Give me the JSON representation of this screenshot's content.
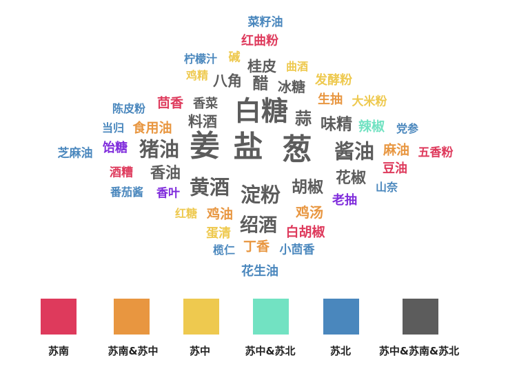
{
  "chart_data": {
    "type": "wordcloud",
    "legend": [
      {
        "key": "sn",
        "label": "苏南",
        "color": "#de3a5c"
      },
      {
        "key": "snz",
        "label": "苏南&苏中",
        "color": "#e89640"
      },
      {
        "key": "sz",
        "label": "苏中",
        "color": "#eec94f"
      },
      {
        "key": "szb",
        "label": "苏中&苏北",
        "color": "#72e2c2"
      },
      {
        "key": "sb",
        "label": "苏北",
        "color": "#4a87bd"
      },
      {
        "key": "all",
        "label": "苏中&苏南&苏北",
        "color": "#5c5c5c"
      }
    ],
    "words": [
      {
        "text": "菜籽油",
        "group": "sb"
      },
      {
        "text": "红曲粉",
        "group": "sn"
      },
      {
        "text": "柠檬汁",
        "group": "sb"
      },
      {
        "text": "碱",
        "group": "sz"
      },
      {
        "text": "桂皮",
        "group": "all"
      },
      {
        "text": "曲酒",
        "group": "sz"
      },
      {
        "text": "鸡精",
        "group": "sz"
      },
      {
        "text": "八角",
        "group": "all"
      },
      {
        "text": "醋",
        "group": "all"
      },
      {
        "text": "冰糖",
        "group": "all"
      },
      {
        "text": "发酵粉",
        "group": "sz"
      },
      {
        "text": "陈皮粉",
        "group": "sb"
      },
      {
        "text": "茴香",
        "group": "sn"
      },
      {
        "text": "香菜",
        "group": "all"
      },
      {
        "text": "白糖",
        "group": "all"
      },
      {
        "text": "生抽",
        "group": "snz"
      },
      {
        "text": "大米粉",
        "group": "sz"
      },
      {
        "text": "当归",
        "group": "sb"
      },
      {
        "text": "食用油",
        "group": "snz"
      },
      {
        "text": "料酒",
        "group": "all"
      },
      {
        "text": "蒜",
        "group": "all"
      },
      {
        "text": "味精",
        "group": "all"
      },
      {
        "text": "辣椒",
        "group": "szb"
      },
      {
        "text": "党参",
        "group": "sb"
      },
      {
        "text": "芝麻油",
        "group": "sb"
      },
      {
        "text": "饴糖",
        "group": "purple"
      },
      {
        "text": "猪油",
        "group": "all"
      },
      {
        "text": "姜",
        "group": "all"
      },
      {
        "text": "盐",
        "group": "all"
      },
      {
        "text": "葱",
        "group": "all"
      },
      {
        "text": "酱油",
        "group": "all"
      },
      {
        "text": "麻油",
        "group": "snz"
      },
      {
        "text": "五香粉",
        "group": "sn"
      },
      {
        "text": "酒糟",
        "group": "sn"
      },
      {
        "text": "香油",
        "group": "all"
      },
      {
        "text": "豆油",
        "group": "sn"
      },
      {
        "text": "花椒",
        "group": "all"
      },
      {
        "text": "番茄酱",
        "group": "sb"
      },
      {
        "text": "香叶",
        "group": "purple"
      },
      {
        "text": "黄酒",
        "group": "all"
      },
      {
        "text": "淀粉",
        "group": "all"
      },
      {
        "text": "胡椒",
        "group": "all"
      },
      {
        "text": "山奈",
        "group": "sb"
      },
      {
        "text": "老抽",
        "group": "purple"
      },
      {
        "text": "红糖",
        "group": "sz"
      },
      {
        "text": "鸡油",
        "group": "snz"
      },
      {
        "text": "鸡汤",
        "group": "snz"
      },
      {
        "text": "蛋清",
        "group": "sz"
      },
      {
        "text": "绍酒",
        "group": "all"
      },
      {
        "text": "白胡椒",
        "group": "sn"
      },
      {
        "text": "榄仁",
        "group": "sb"
      },
      {
        "text": "丁香",
        "group": "snz"
      },
      {
        "text": "小茴香",
        "group": "sb"
      },
      {
        "text": "花生油",
        "group": "sb"
      }
    ],
    "extra_colors": {
      "purple": "#7f2bdc"
    }
  }
}
